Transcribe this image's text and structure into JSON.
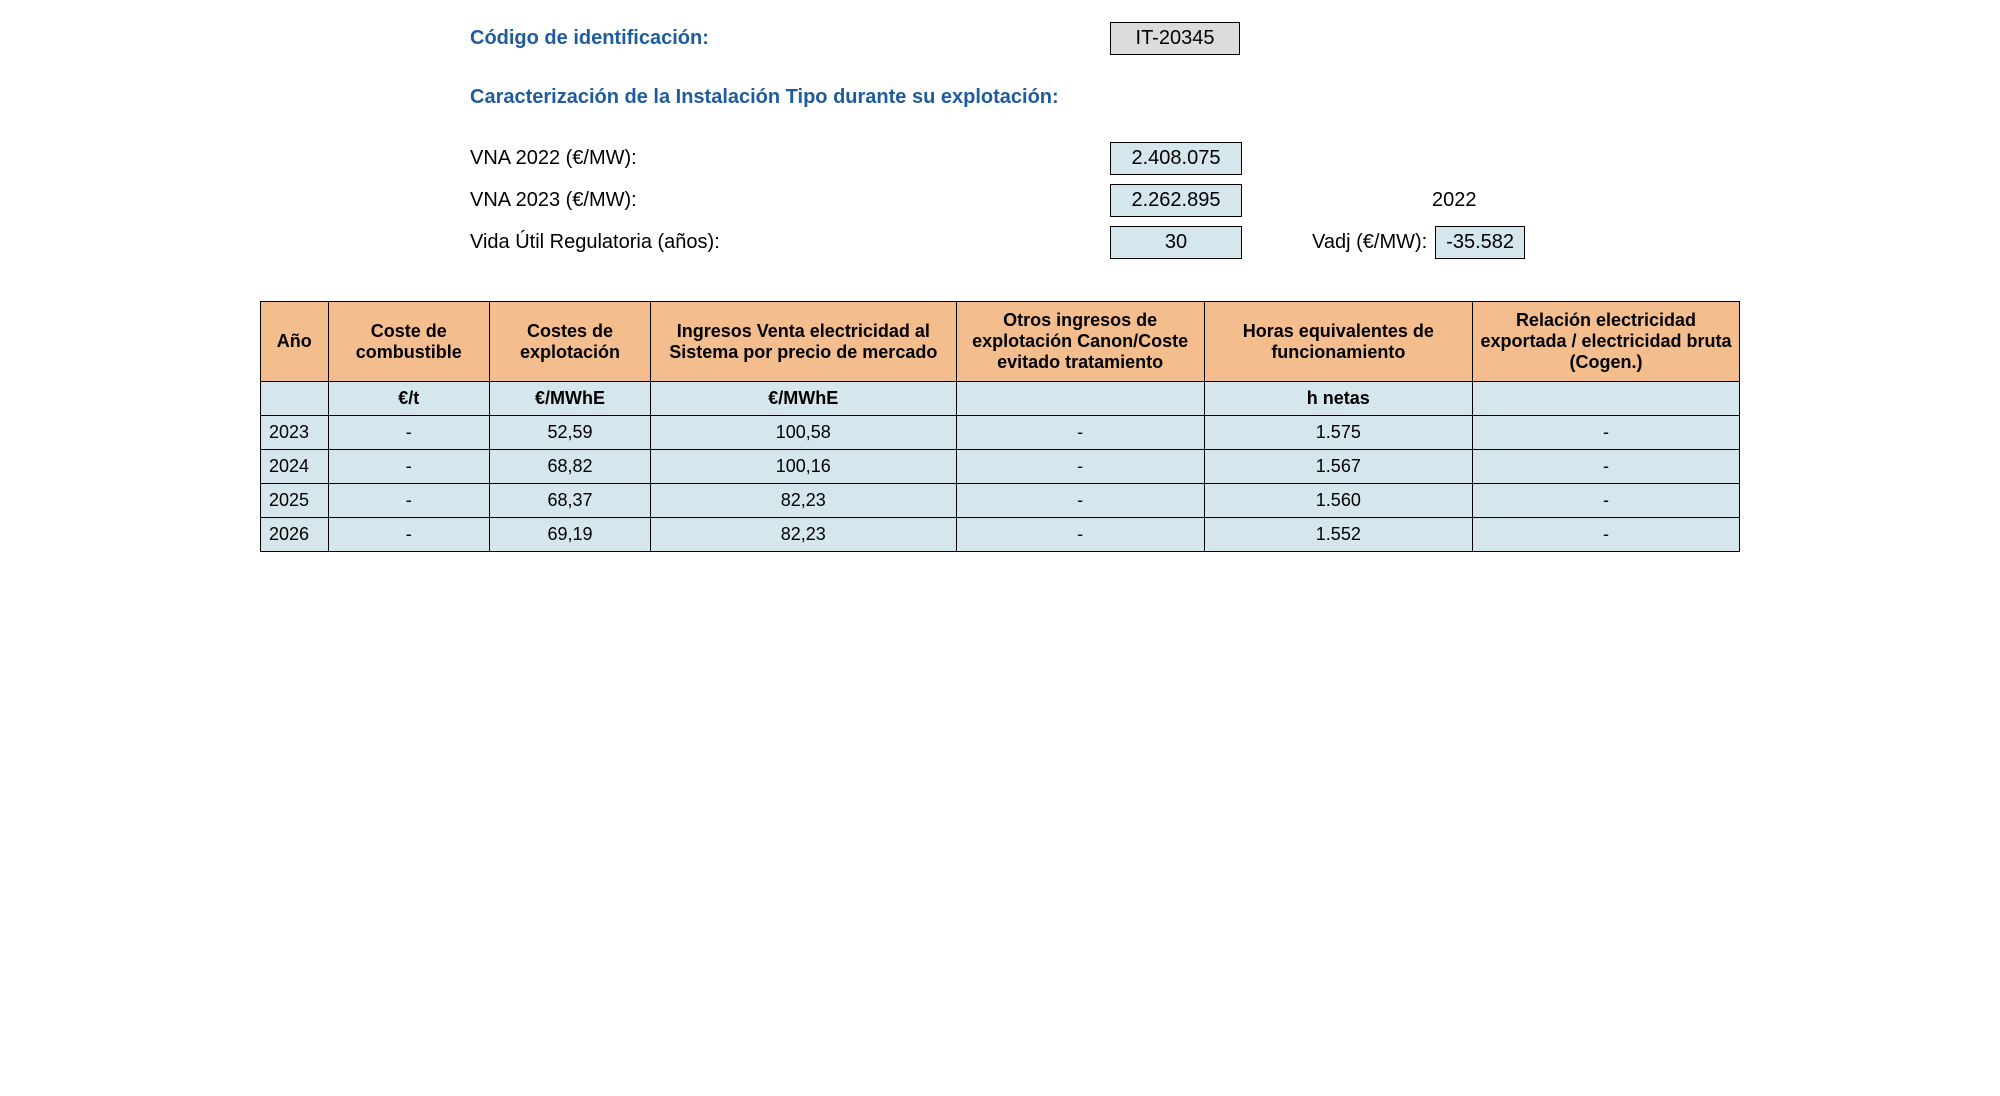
{
  "header": {
    "code_label": "Código de identificación:",
    "code_value": "IT-20345",
    "subtitle": "Caracterización de la Instalación Tipo durante su explotación:"
  },
  "details": {
    "vna2022_label": "VNA 2022 (€/MW):",
    "vna2022_value": "2.408.075",
    "vna2023_label": "VNA 2023 (€/MW):",
    "vna2023_value": "2.262.895",
    "vida_label": "Vida Útil Regulatoria (años):",
    "vida_value": "30",
    "ref_year": "2022",
    "vadj_label": "Vadj (€/MW):",
    "vadj_value": "-35.582"
  },
  "table": {
    "columns": [
      "Año",
      "Coste de combustible",
      "Costes de explotación",
      "Ingresos Venta electricidad al Sistema por precio de mercado",
      "Otros ingresos de explotación Canon/Coste evitado tratamiento",
      "Horas equivalentes de funcionamiento",
      "Relación electricidad exportada / electricidad bruta (Cogen.)"
    ],
    "units": [
      "",
      "€/t",
      "€/MWhE",
      "€/MWhE",
      "",
      "h netas",
      ""
    ],
    "rows": [
      {
        "year": "2023",
        "fuel": "-",
        "exp": "52,59",
        "sales": "100,58",
        "other": "-",
        "hours": "1.575",
        "ratio": "-"
      },
      {
        "year": "2024",
        "fuel": "-",
        "exp": "68,82",
        "sales": "100,16",
        "other": "-",
        "hours": "1.567",
        "ratio": "-"
      },
      {
        "year": "2025",
        "fuel": "-",
        "exp": "68,37",
        "sales": "82,23",
        "other": "-",
        "hours": "1.560",
        "ratio": "-"
      },
      {
        "year": "2026",
        "fuel": "-",
        "exp": "69,19",
        "sales": "82,23",
        "other": "-",
        "hours": "1.552",
        "ratio": "-"
      }
    ],
    "colors": {
      "header_bg": "#f4bd8e",
      "cell_bg": "#d6e6ed",
      "border": "#000000",
      "title_blue": "#1f5c9e",
      "code_bg": "#dcdcdc"
    }
  }
}
